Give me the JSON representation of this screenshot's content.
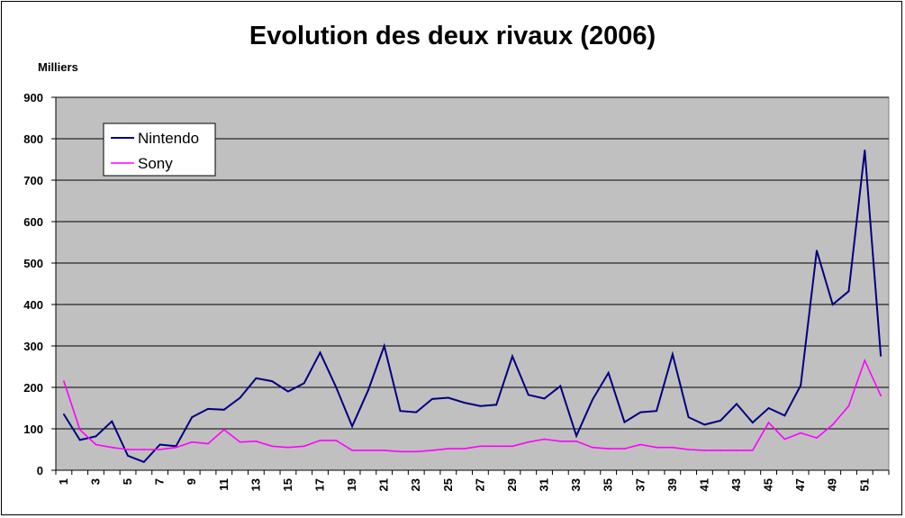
{
  "chart_data": {
    "type": "line",
    "title": "Evolution des deux rivaux (2006)",
    "unit_label": "Milliers",
    "xlabel": "",
    "ylabel": "",
    "ylim": [
      0,
      900
    ],
    "y_ticks": [
      "0",
      "100",
      "200",
      "300",
      "400",
      "500",
      "600",
      "700",
      "800",
      "900"
    ],
    "x": [
      1,
      2,
      3,
      4,
      5,
      6,
      7,
      8,
      9,
      10,
      11,
      12,
      13,
      14,
      15,
      16,
      17,
      18,
      19,
      20,
      21,
      22,
      23,
      24,
      25,
      26,
      27,
      28,
      29,
      30,
      31,
      32,
      33,
      34,
      35,
      36,
      37,
      38,
      39,
      40,
      41,
      42,
      43,
      44,
      45,
      46,
      47,
      48,
      49,
      50,
      51,
      52
    ],
    "x_tick_labels": [
      "1",
      "3",
      "5",
      "7",
      "9",
      "11",
      "13",
      "15",
      "17",
      "19",
      "21",
      "23",
      "25",
      "27",
      "29",
      "31",
      "33",
      "35",
      "37",
      "39",
      "41",
      "43",
      "45",
      "47",
      "49",
      "51"
    ],
    "grid": true,
    "legend_position": "top-left",
    "plot_background": "#c0c0c0",
    "series": [
      {
        "name": "Nintendo",
        "color": "#000080",
        "values": [
          135,
          73,
          82,
          118,
          35,
          20,
          62,
          58,
          128,
          148,
          146,
          175,
          222,
          215,
          190,
          210,
          284,
          200,
          106,
          193,
          300,
          143,
          140,
          172,
          175,
          163,
          155,
          158,
          275,
          182,
          173,
          203,
          83,
          170,
          235,
          116,
          140,
          143,
          280,
          128,
          110,
          120,
          160,
          115,
          150,
          132,
          205,
          530,
          400,
          432,
          772,
          276
        ]
      },
      {
        "name": "Sony",
        "color": "#ff00ff",
        "values": [
          215,
          98,
          62,
          55,
          50,
          50,
          50,
          55,
          68,
          64,
          98,
          68,
          70,
          58,
          55,
          58,
          72,
          72,
          48,
          48,
          48,
          45,
          45,
          48,
          52,
          52,
          58,
          58,
          58,
          68,
          75,
          70,
          70,
          55,
          52,
          52,
          62,
          55,
          55,
          50,
          48,
          48,
          48,
          48,
          115,
          75,
          90,
          78,
          110,
          155,
          265,
          180
        ]
      }
    ]
  }
}
